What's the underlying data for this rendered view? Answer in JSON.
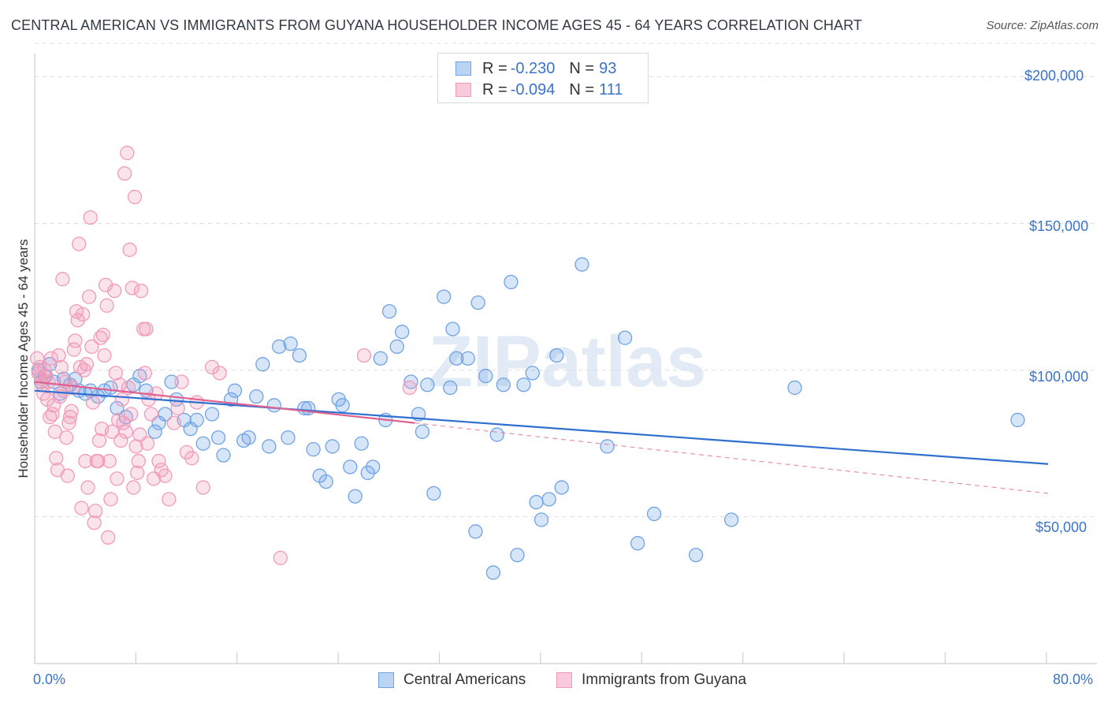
{
  "title": "CENTRAL AMERICAN VS IMMIGRANTS FROM GUYANA HOUSEHOLDER INCOME AGES 45 - 64 YEARS CORRELATION CHART",
  "source": "Source: ZipAtlas.com",
  "watermark": "ZIPatlas",
  "legend": {
    "r_label": "R =",
    "n_label": "N =",
    "series": [
      {
        "r": "-0.230",
        "n": "93"
      },
      {
        "r": "-0.094",
        "n": "111"
      }
    ]
  },
  "chart_data": {
    "type": "scatter",
    "title": "CENTRAL AMERICAN VS IMMIGRANTS FROM GUYANA HOUSEHOLDER INCOME AGES 45 - 64 YEARS CORRELATION CHART",
    "xlabel": "",
    "ylabel": "Householder Income Ages 45 - 64 years",
    "xlim": [
      0,
      80
    ],
    "ylim": [
      0,
      210000
    ],
    "x_tick_labels": [
      "0.0%",
      "80.0%"
    ],
    "y_ticks": [
      50000,
      100000,
      150000,
      200000
    ],
    "y_tick_labels": [
      "$50,000",
      "$100,000",
      "$150,000",
      "$200,000"
    ],
    "grid": true,
    "legend_position": "top-center",
    "series": [
      {
        "name": "Central Americans",
        "color": "#6fa3e6",
        "line_color": "#2f6fcf",
        "trend": {
          "x0": 0,
          "y0": 93000,
          "x1": 80,
          "y1": 68000,
          "dashed_after": 80
        },
        "points": [
          [
            0.3,
            100000
          ],
          [
            0.5,
            96000
          ],
          [
            0.8,
            98000
          ],
          [
            1.2,
            102000
          ],
          [
            1.5,
            96000
          ],
          [
            2,
            92000
          ],
          [
            2.3,
            97000
          ],
          [
            2.8,
            95000
          ],
          [
            3.2,
            97000
          ],
          [
            3.5,
            93000
          ],
          [
            4,
            92000
          ],
          [
            4.4,
            93000
          ],
          [
            5,
            91000
          ],
          [
            5.5,
            93000
          ],
          [
            6,
            94000
          ],
          [
            6.5,
            87000
          ],
          [
            7.2,
            84000
          ],
          [
            7.8,
            95000
          ],
          [
            8.3,
            98000
          ],
          [
            8.8,
            93000
          ],
          [
            9.5,
            79000
          ],
          [
            9.8,
            82000
          ],
          [
            10.3,
            85000
          ],
          [
            10.8,
            96000
          ],
          [
            11.2,
            90000
          ],
          [
            11.8,
            83000
          ],
          [
            12.3,
            80000
          ],
          [
            12.8,
            83000
          ],
          [
            13.3,
            75000
          ],
          [
            14,
            85000
          ],
          [
            14.5,
            77000
          ],
          [
            14.9,
            71000
          ],
          [
            15.5,
            90000
          ],
          [
            15.8,
            93000
          ],
          [
            16.5,
            76000
          ],
          [
            16.9,
            77000
          ],
          [
            17.5,
            91000
          ],
          [
            18,
            102000
          ],
          [
            18.5,
            74000
          ],
          [
            18.9,
            88000
          ],
          [
            19.3,
            108000
          ],
          [
            20,
            77000
          ],
          [
            20.2,
            109000
          ],
          [
            20.9,
            105000
          ],
          [
            21.3,
            87000
          ],
          [
            21.6,
            87000
          ],
          [
            22,
            73000
          ],
          [
            22.5,
            64000
          ],
          [
            23,
            62000
          ],
          [
            23.5,
            74000
          ],
          [
            24,
            90000
          ],
          [
            24.3,
            88000
          ],
          [
            24.9,
            67000
          ],
          [
            25.3,
            57000
          ],
          [
            25.8,
            75000
          ],
          [
            26.3,
            65000
          ],
          [
            26.7,
            67000
          ],
          [
            27.3,
            104000
          ],
          [
            27.7,
            83000
          ],
          [
            28,
            120000
          ],
          [
            28.6,
            108000
          ],
          [
            29,
            113000
          ],
          [
            29.7,
            96000
          ],
          [
            30.3,
            85000
          ],
          [
            30.6,
            79000
          ],
          [
            31,
            95000
          ],
          [
            31.5,
            58000
          ],
          [
            32.3,
            125000
          ],
          [
            32.8,
            94000
          ],
          [
            33,
            114000
          ],
          [
            33.3,
            104000
          ],
          [
            34.2,
            104000
          ],
          [
            34.8,
            45000
          ],
          [
            35,
            123000
          ],
          [
            35.6,
            98000
          ],
          [
            36.2,
            31000
          ],
          [
            36.5,
            78000
          ],
          [
            37,
            95000
          ],
          [
            37.6,
            130000
          ],
          [
            38.1,
            37000
          ],
          [
            38.6,
            95000
          ],
          [
            39.3,
            99000
          ],
          [
            39.6,
            55000
          ],
          [
            40,
            49000
          ],
          [
            40.6,
            56000
          ],
          [
            41.2,
            105000
          ],
          [
            41.6,
            60000
          ],
          [
            43.2,
            136000
          ],
          [
            45.2,
            74000
          ],
          [
            46.6,
            111000
          ],
          [
            47.6,
            41000
          ],
          [
            48.9,
            51000
          ],
          [
            52.2,
            37000
          ],
          [
            55,
            49000
          ],
          [
            60,
            94000
          ],
          [
            77.6,
            83000
          ]
        ]
      },
      {
        "name": "Immigrants from Guyana",
        "color": "#f29bb8",
        "line_color": "#e0608f",
        "trend": {
          "x0": 0,
          "y0": 96000,
          "x1": 30,
          "y1": 82000,
          "dashed_to": 80,
          "dashed_y": 58000
        },
        "points": [
          [
            0.2,
            104000
          ],
          [
            0.3,
            99000
          ],
          [
            0.4,
            101000
          ],
          [
            0.5,
            97000
          ],
          [
            0.6,
            95000
          ],
          [
            0.7,
            92000
          ],
          [
            0.8,
            100000
          ],
          [
            0.9,
            98000
          ],
          [
            1,
            90000
          ],
          [
            1.1,
            96000
          ],
          [
            1.2,
            84000
          ],
          [
            1.3,
            104000
          ],
          [
            1.4,
            85000
          ],
          [
            1.5,
            88000
          ],
          [
            1.6,
            79000
          ],
          [
            1.7,
            70000
          ],
          [
            1.8,
            66000
          ],
          [
            1.9,
            105000
          ],
          [
            2,
            91000
          ],
          [
            2.1,
            101000
          ],
          [
            2.2,
            131000
          ],
          [
            2.3,
            93000
          ],
          [
            2.4,
            96000
          ],
          [
            2.5,
            77000
          ],
          [
            2.6,
            64000
          ],
          [
            2.7,
            82000
          ],
          [
            2.8,
            84000
          ],
          [
            2.9,
            86000
          ],
          [
            3,
            94000
          ],
          [
            3.1,
            107000
          ],
          [
            3.2,
            110000
          ],
          [
            3.3,
            120000
          ],
          [
            3.4,
            117000
          ],
          [
            3.5,
            143000
          ],
          [
            3.6,
            101000
          ],
          [
            3.7,
            53000
          ],
          [
            3.8,
            119000
          ],
          [
            3.9,
            100000
          ],
          [
            4,
            69000
          ],
          [
            4.1,
            102000
          ],
          [
            4.2,
            60000
          ],
          [
            4.3,
            125000
          ],
          [
            4.4,
            152000
          ],
          [
            4.5,
            108000
          ],
          [
            4.6,
            89000
          ],
          [
            4.7,
            48000
          ],
          [
            4.8,
            52000
          ],
          [
            4.9,
            69000
          ],
          [
            5,
            69000
          ],
          [
            5.1,
            76000
          ],
          [
            5.2,
            111000
          ],
          [
            5.3,
            80000
          ],
          [
            5.4,
            112000
          ],
          [
            5.5,
            105000
          ],
          [
            5.6,
            129000
          ],
          [
            5.7,
            122000
          ],
          [
            5.8,
            43000
          ],
          [
            5.9,
            69000
          ],
          [
            6,
            56000
          ],
          [
            6.1,
            79000
          ],
          [
            6.3,
            127000
          ],
          [
            6.4,
            99000
          ],
          [
            6.5,
            63000
          ],
          [
            6.6,
            83000
          ],
          [
            6.7,
            95000
          ],
          [
            6.8,
            76000
          ],
          [
            6.9,
            90000
          ],
          [
            7,
            82000
          ],
          [
            7.1,
            167000
          ],
          [
            7.2,
            79000
          ],
          [
            7.3,
            174000
          ],
          [
            7.4,
            94000
          ],
          [
            7.5,
            141000
          ],
          [
            7.6,
            85000
          ],
          [
            7.7,
            128000
          ],
          [
            7.8,
            60000
          ],
          [
            7.9,
            159000
          ],
          [
            8,
            74000
          ],
          [
            8.1,
            65000
          ],
          [
            8.2,
            69000
          ],
          [
            8.3,
            78000
          ],
          [
            8.4,
            127000
          ],
          [
            8.6,
            114000
          ],
          [
            8.7,
            99000
          ],
          [
            8.8,
            114000
          ],
          [
            8.9,
            75000
          ],
          [
            9,
            90000
          ],
          [
            9.2,
            85000
          ],
          [
            9.4,
            63000
          ],
          [
            9.6,
            92000
          ],
          [
            9.8,
            69000
          ],
          [
            10,
            66000
          ],
          [
            10.3,
            64000
          ],
          [
            10.6,
            56000
          ],
          [
            11,
            82000
          ],
          [
            11.3,
            87000
          ],
          [
            11.6,
            96000
          ],
          [
            12,
            72000
          ],
          [
            12.4,
            70000
          ],
          [
            12.8,
            89000
          ],
          [
            13.3,
            60000
          ],
          [
            14,
            101000
          ],
          [
            14.6,
            99000
          ],
          [
            19.4,
            36000
          ],
          [
            26,
            105000
          ],
          [
            29.6,
            94000
          ]
        ]
      }
    ]
  },
  "bottom_legend": [
    "Central Americans",
    "Immigrants from Guyana"
  ]
}
